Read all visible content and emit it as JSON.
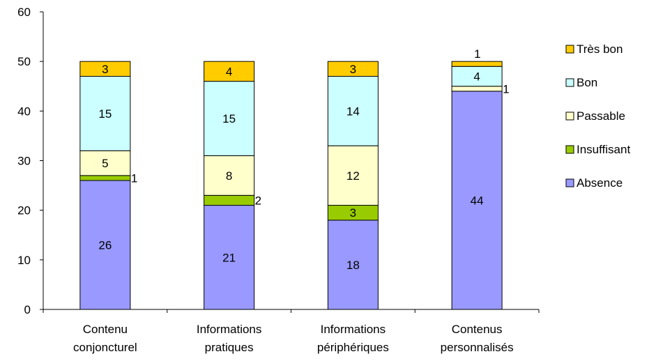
{
  "chart_data": {
    "type": "bar",
    "stacked": true,
    "title": "",
    "xlabel": "",
    "ylabel": "",
    "ylim": [
      0,
      60
    ],
    "yticks": [
      0,
      10,
      20,
      30,
      40,
      50,
      60
    ],
    "grid": false,
    "legend_position": "right",
    "categories": [
      [
        "Contenu",
        "conjoncturel"
      ],
      [
        "Informations",
        "pratiques"
      ],
      [
        "Informations",
        "périphériques"
      ],
      [
        "Contenus",
        "personnalisés"
      ]
    ],
    "series": [
      {
        "name": "Absence",
        "color": "#9999ff",
        "values": [
          26,
          21,
          18,
          44
        ]
      },
      {
        "name": "Insuffisant",
        "color": "#99cc00",
        "values": [
          1,
          2,
          3,
          0
        ]
      },
      {
        "name": "Passable",
        "color": "#ffffcc",
        "values": [
          5,
          8,
          12,
          1
        ]
      },
      {
        "name": "Bon",
        "color": "#ccffff",
        "values": [
          15,
          15,
          14,
          4
        ]
      },
      {
        "name": "Très bon",
        "color": "#ffcc00",
        "values": [
          3,
          4,
          3,
          1
        ]
      }
    ],
    "legend_order": [
      "Très bon",
      "Bon",
      "Passable",
      "Insuffisant",
      "Absence"
    ]
  }
}
